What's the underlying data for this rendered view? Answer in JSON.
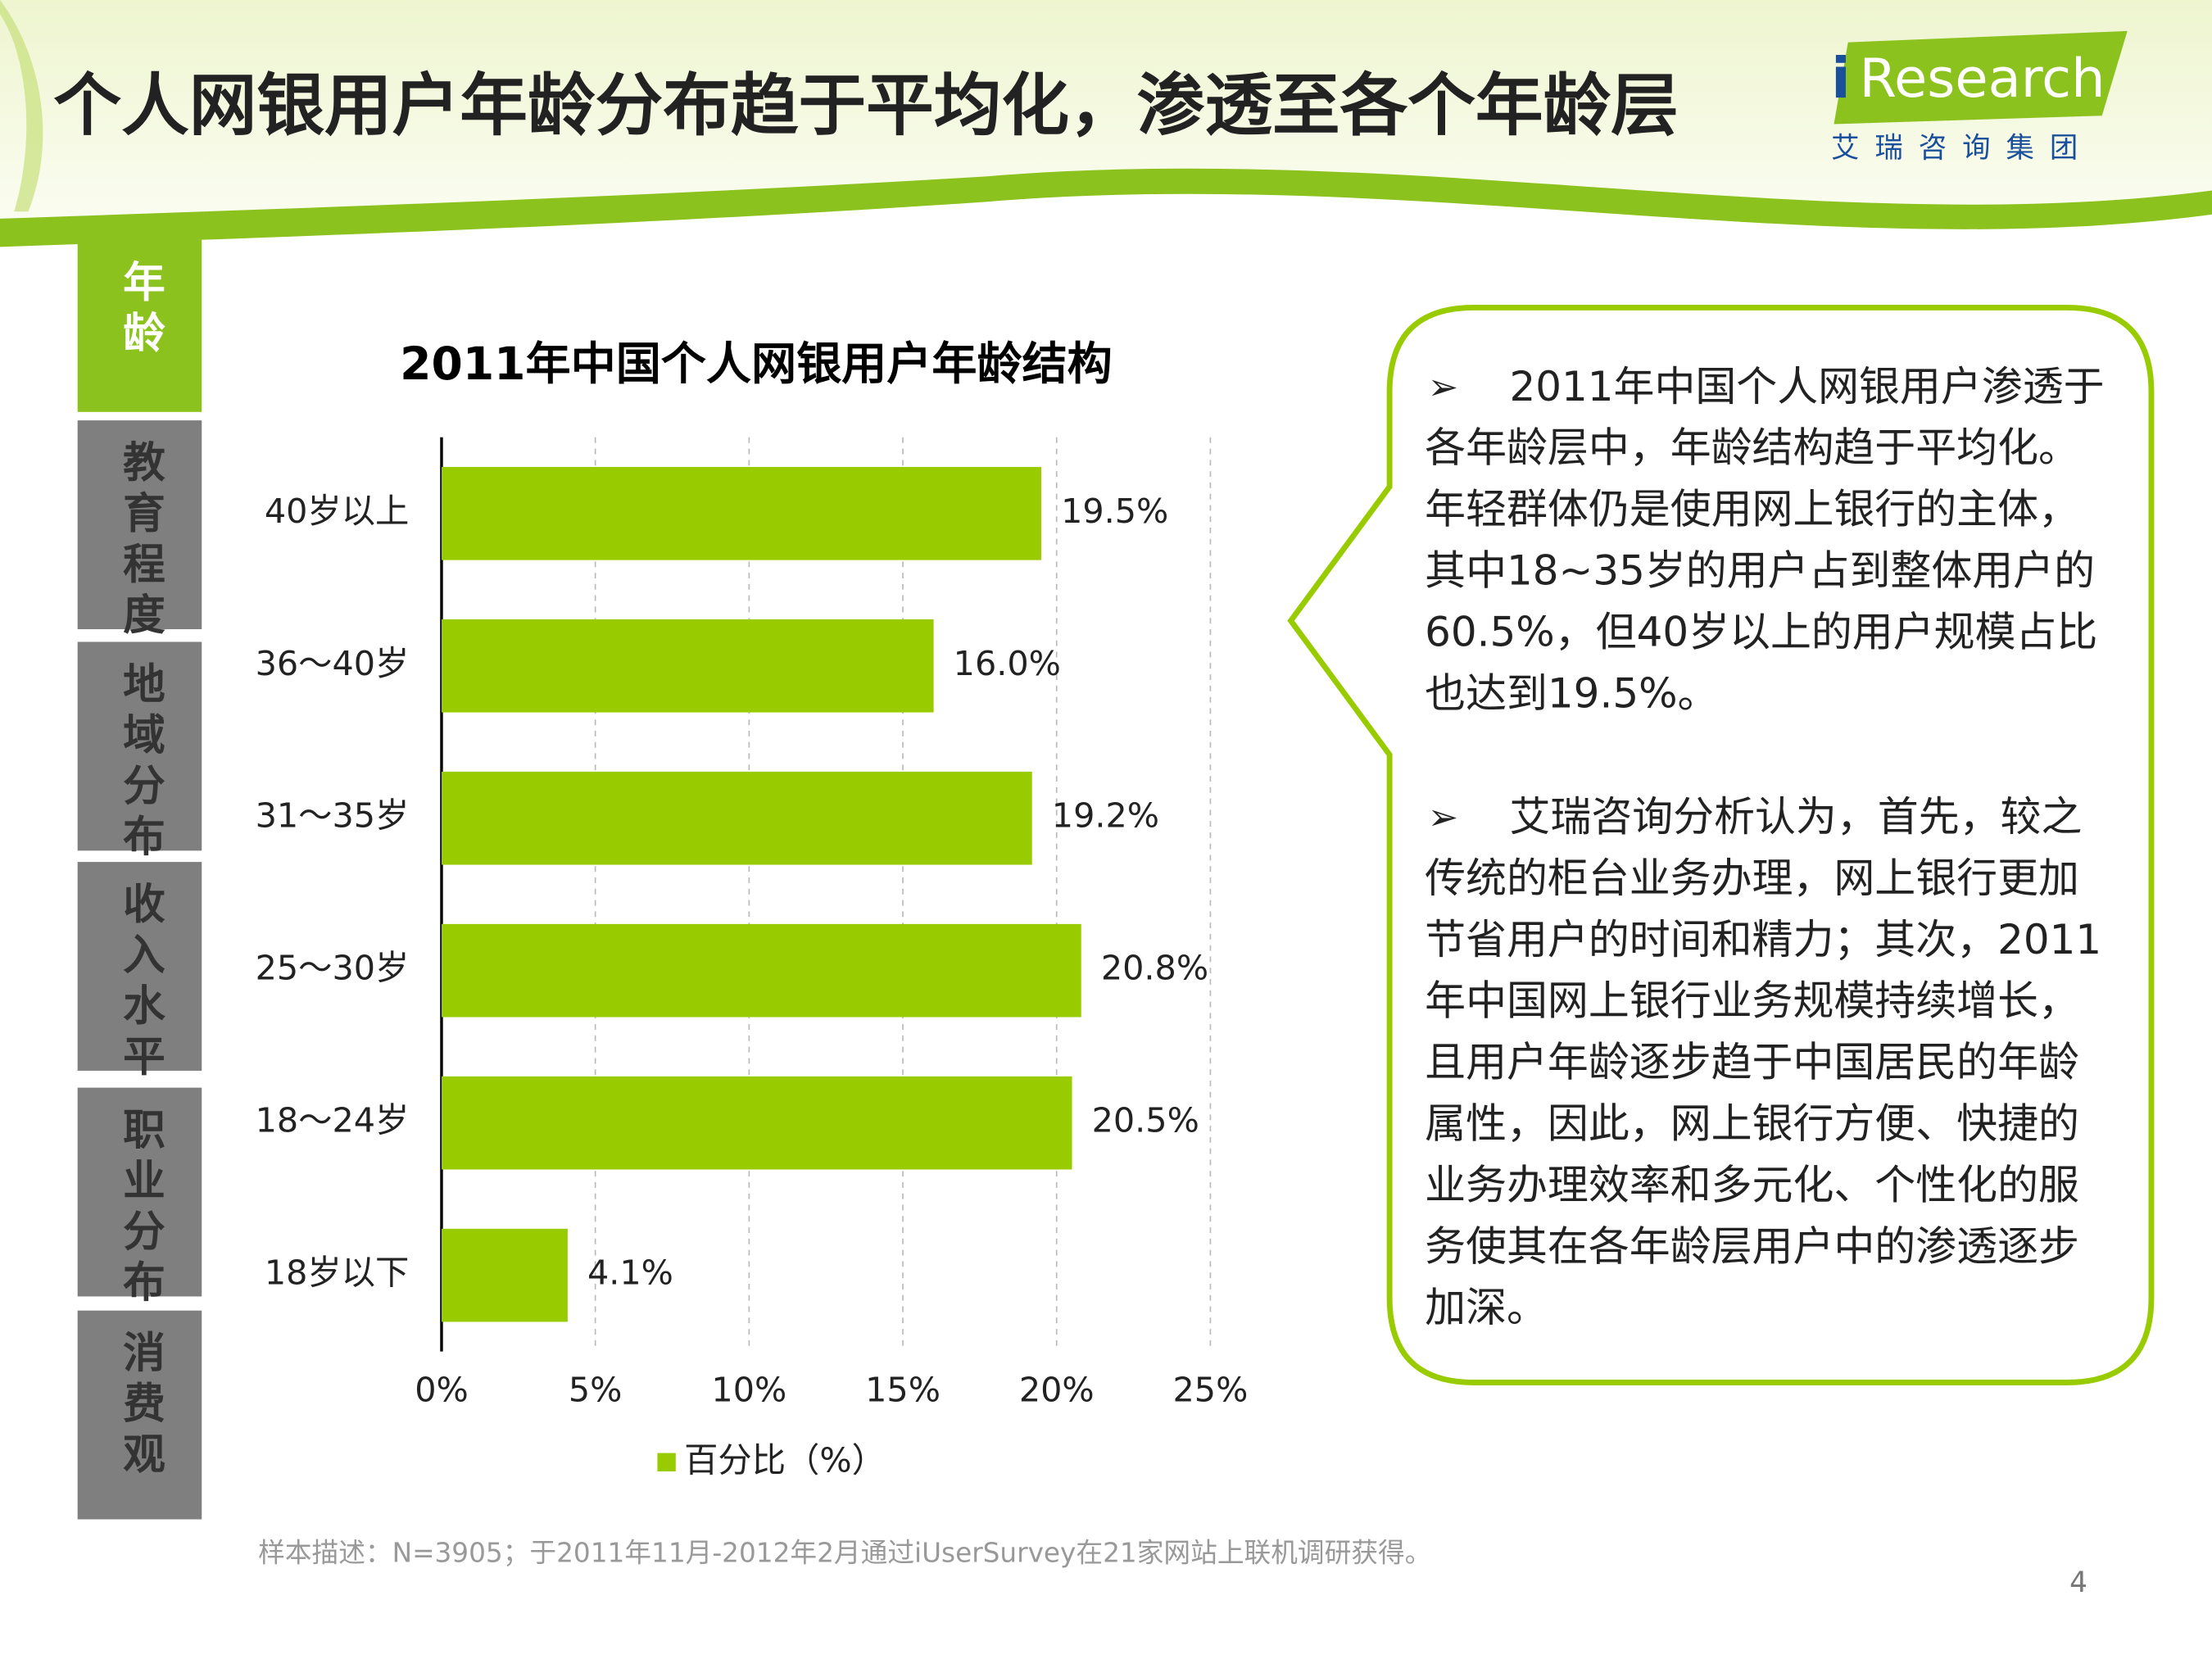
{
  "header": {
    "title": "个人网银用户年龄分布趋于平均化，渗透至各个年龄层"
  },
  "logo": {
    "mark": "i",
    "name": "Research",
    "subtitle": "艾瑞咨询集团"
  },
  "sidebar": {
    "tabs": [
      "年龄",
      "教育程度",
      "地域分布",
      "收入水平",
      "职业分布",
      "消费观"
    ],
    "active": 0
  },
  "chart_data": {
    "type": "hbar",
    "title": "2011年中国个人网银用户年龄结构",
    "categories": [
      "40岁以上",
      "36～40岁",
      "31～35岁",
      "25～30岁",
      "18～24岁",
      "18岁以下"
    ],
    "series": [
      {
        "name": "百分比（%）",
        "color": "#99cc00",
        "values": [
          19.5,
          16.0,
          19.2,
          20.8,
          20.5,
          4.1
        ],
        "value_labels": [
          "19.5%",
          "16.0%",
          "19.2%",
          "20.8%",
          "20.5%",
          "4.1%"
        ]
      }
    ],
    "xlim": [
      0,
      25
    ],
    "xticks": [
      {
        "value": 0,
        "label": "0%"
      },
      {
        "value": 5,
        "label": "5%"
      },
      {
        "value": 10,
        "label": "10%"
      },
      {
        "value": 15,
        "label": "15%"
      },
      {
        "value": 20,
        "label": "20%"
      },
      {
        "value": 25,
        "label": "25%"
      }
    ],
    "grid": true,
    "legend": "bottom"
  },
  "notes": [
    [
      "2011年中国个人网银用户渗透于",
      "各年龄层中，年龄结构趋于平均化。",
      "年轻群体仍是使用网上银行的主体，",
      "其中18~35岁的用户占到整体用户的",
      "60.5%，但40岁以上的用户规模占比",
      "也达到19.5%。"
    ],
    [
      "艾瑞咨询分析认为，首先，较之",
      "传统的柜台业务办理，网上银行更加",
      "节省用户的时间和精力；其次，2011",
      "年中国网上银行业务规模持续增长，",
      "且用户年龄逐步趋于中国居民的年龄",
      "属性，因此，网上银行方便、快捷的",
      "业务办理效率和多元化、个性化的服",
      "务使其在各年龄层用户中的渗透逐步",
      "加深。"
    ]
  ],
  "footer": {
    "source": "样本描述：N=3905；于2011年11月-2012年2月通过iUserSurvey在21家网站上联机调研获得。",
    "page": "4"
  }
}
